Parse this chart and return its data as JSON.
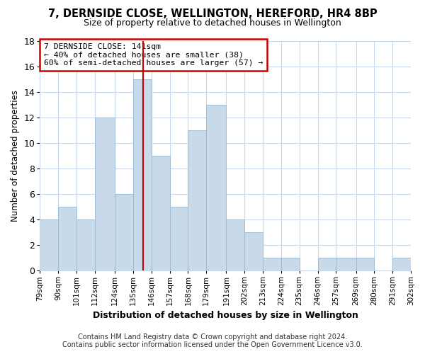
{
  "title": "7, DERNSIDE CLOSE, WELLINGTON, HEREFORD, HR4 8BP",
  "subtitle": "Size of property relative to detached houses in Wellington",
  "xlabel": "Distribution of detached houses by size in Wellington",
  "ylabel": "Number of detached properties",
  "bar_color": "#c8daea",
  "bar_edgecolor": "#9ab8d0",
  "grid_color": "#c8d8e8",
  "vline_x": 141,
  "vline_color": "#cc0000",
  "annotation_line1": "7 DERNSIDE CLOSE: 141sqm",
  "annotation_line2": "← 40% of detached houses are smaller (38)",
  "annotation_line3": "60% of semi-detached houses are larger (57) →",
  "annotation_box_facecolor": "#ffffff",
  "annotation_box_edgecolor": "#cc0000",
  "bins": [
    79,
    90,
    101,
    112,
    124,
    135,
    146,
    157,
    168,
    179,
    191,
    202,
    213,
    224,
    235,
    246,
    257,
    269,
    280,
    291,
    302
  ],
  "counts": [
    4,
    5,
    4,
    12,
    6,
    15,
    9,
    5,
    11,
    13,
    4,
    3,
    1,
    1,
    0,
    1,
    1,
    1,
    0,
    1
  ],
  "xlabels": [
    "79sqm",
    "90sqm",
    "101sqm",
    "112sqm",
    "124sqm",
    "135sqm",
    "146sqm",
    "157sqm",
    "168sqm",
    "179sqm",
    "191sqm",
    "202sqm",
    "213sqm",
    "224sqm",
    "235sqm",
    "246sqm",
    "257sqm",
    "269sqm",
    "280sqm",
    "291sqm",
    "302sqm"
  ],
  "ylim": [
    0,
    18
  ],
  "yticks": [
    0,
    2,
    4,
    6,
    8,
    10,
    12,
    14,
    16,
    18
  ],
  "footer1": "Contains HM Land Registry data © Crown copyright and database right 2024.",
  "footer2": "Contains public sector information licensed under the Open Government Licence v3.0.",
  "fig_facecolor": "#ffffff",
  "plot_facecolor": "#ffffff",
  "title_fontsize": 10.5,
  "subtitle_fontsize": 9,
  "footer_fontsize": 7,
  "xlabel_fontsize": 9,
  "ylabel_fontsize": 8.5,
  "xtick_fontsize": 7.5,
  "ytick_fontsize": 9
}
